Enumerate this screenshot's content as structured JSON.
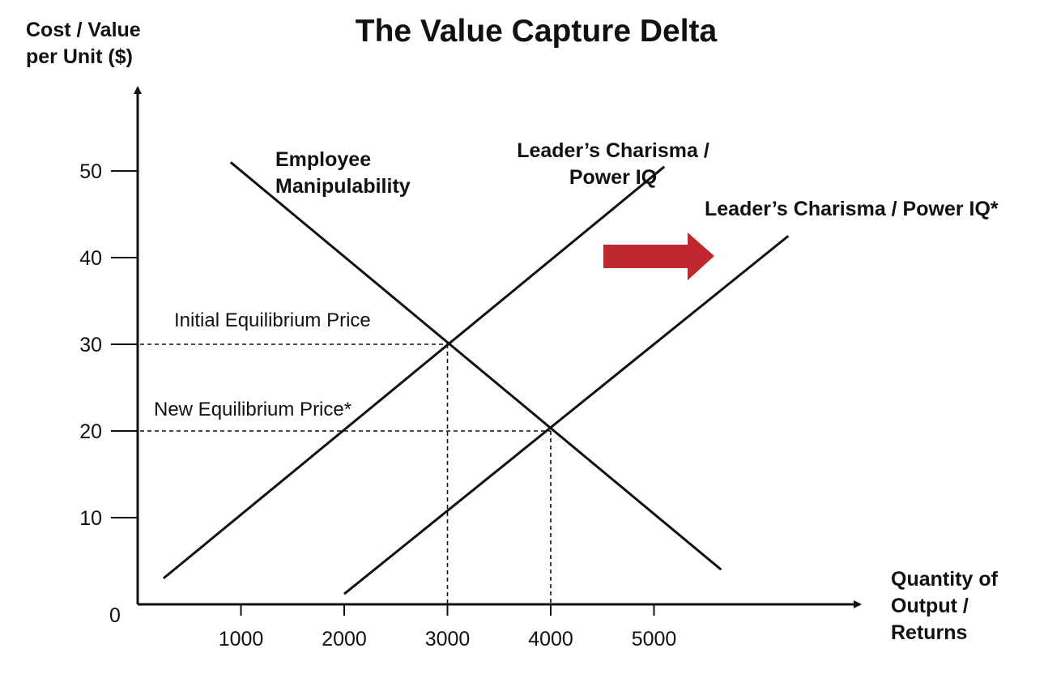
{
  "chart_data": {
    "type": "line",
    "title": "The Value Capture Delta",
    "ylabel_lines": [
      "Cost / Value",
      "per Unit ($)"
    ],
    "xlabel_lines": [
      "Quantity of",
      "Output /",
      "Returns"
    ],
    "xlim": [
      -1000,
      7000
    ],
    "ylim": [
      0,
      60
    ],
    "x_ticks": [
      1000,
      2000,
      3000,
      4000,
      5000
    ],
    "y_ticks": [
      10,
      20,
      30,
      40,
      50
    ],
    "origin_label": "0",
    "grid": false,
    "series": [
      {
        "name": "Employee Manipulability",
        "name_lines": [
          "Employee",
          "Manipulability"
        ],
        "x": [
          900,
          5650
        ],
        "y": [
          51,
          4
        ]
      },
      {
        "name": "Leader’s Charisma / Power IQ",
        "name_lines": [
          "Leader’s Charisma /",
          "Power IQ"
        ],
        "x": [
          250,
          5100
        ],
        "y": [
          3,
          50.5
        ]
      },
      {
        "name": "Leader’s Charisma / Power IQ*",
        "name_lines": [
          "Leader’s Charisma / Power IQ*"
        ],
        "x": [
          2000,
          6300
        ],
        "y": [
          1.2,
          42.5
        ]
      }
    ],
    "equilibria": [
      {
        "label": "Initial Equilibrium Price",
        "x": 3000,
        "y": 30
      },
      {
        "label": "New Equilibrium Price*",
        "x": 4000,
        "y": 20
      }
    ],
    "shift_arrow": {
      "color": "#c0282d",
      "direction": "right"
    }
  },
  "colors": {
    "ink": "#111111",
    "arrow": "#c0282d"
  }
}
